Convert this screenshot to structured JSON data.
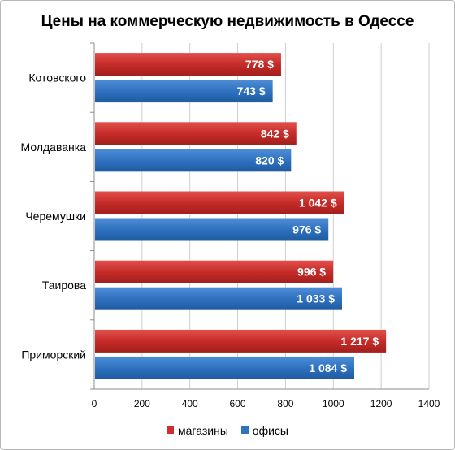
{
  "chart_data": {
    "type": "bar",
    "orientation": "horizontal",
    "title": "Цены на коммерческую недвижимость в Одессе",
    "categories": [
      "Котовского",
      "Молдаванка",
      "Черемушки",
      "Таирова",
      "Приморский"
    ],
    "series": [
      {
        "name": "магазины",
        "color": "#cc2f2c",
        "values": [
          778,
          842,
          1042,
          996,
          1217
        ],
        "labels": [
          "778 $",
          "842 $",
          "1 042 $",
          "996 $",
          "1 217 $"
        ]
      },
      {
        "name": "офисы",
        "color": "#2f73c0",
        "values": [
          743,
          820,
          976,
          1033,
          1084
        ],
        "labels": [
          "743 $",
          "820 $",
          "976 $",
          "1 033 $",
          "1 084 $"
        ]
      }
    ],
    "xlim": [
      0,
      1400
    ],
    "xticks": [
      "0",
      "200",
      "400",
      "600",
      "800",
      "1000",
      "1200",
      "1400"
    ],
    "grid": true,
    "legend_position": "bottom"
  }
}
